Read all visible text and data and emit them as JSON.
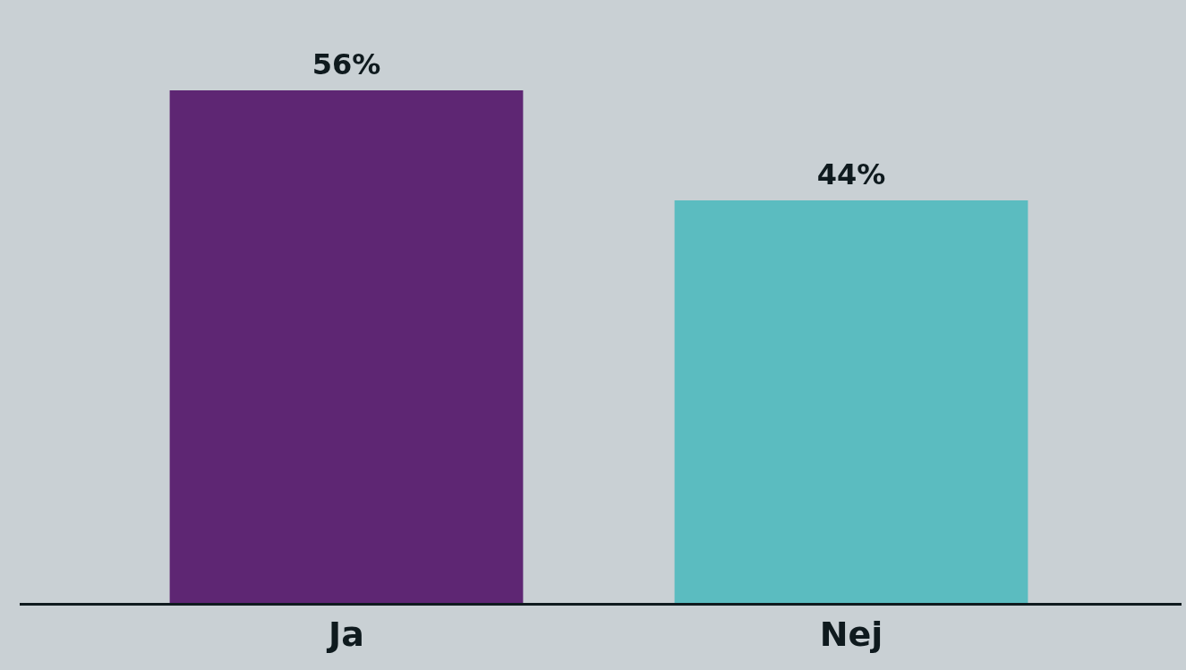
{
  "chart_data": {
    "type": "bar",
    "categories": [
      "Ja",
      "Nej"
    ],
    "values": [
      56,
      44
    ],
    "colors": [
      "#5e2673",
      "#5bbcc0"
    ],
    "value_labels": [
      "56%",
      "44%"
    ],
    "legend": false,
    "grid": false
  }
}
